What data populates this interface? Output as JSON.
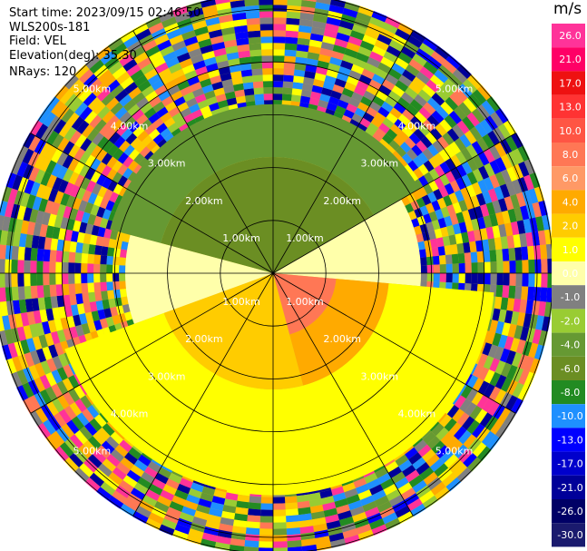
{
  "header": {
    "start_time": "Start time: 2023/09/15 02:46:50",
    "station": "WLS200s-181",
    "field": "Field: VEL",
    "elevation": "Elevation(deg): 35.30",
    "nrays": "NRays: 120"
  },
  "colorbar": {
    "unit": "m/s",
    "labels": [
      "26.0",
      "21.0",
      "17.0",
      "13.0",
      "10.0",
      "8.0",
      "6.0",
      "4.0",
      "2.0",
      "1.0",
      "0.0",
      "-1.0",
      "-2.0",
      "-4.0",
      "-6.0",
      "-8.0",
      "-10.0",
      "-13.0",
      "-17.0",
      "-21.0",
      "-26.0",
      "-30.0"
    ],
    "colors": [
      "#ff3399",
      "#ff0066",
      "#ee1111",
      "#ff3333",
      "#ff5544",
      "#ff7755",
      "#ff9966",
      "#ffaa00",
      "#ffcc00",
      "#ffff00",
      "#ffffaa",
      "#808080",
      "#99cc33",
      "#669933",
      "#6b8e23",
      "#228b22",
      "#1e90ff",
      "#0000ff",
      "#0000cc",
      "#000099",
      "#000066",
      "#1a1a6e"
    ]
  },
  "chart_data": {
    "type": "heatmap",
    "subtype": "ppi-polar-velocity",
    "range_unit": "km",
    "range_rings_km": [
      1,
      2,
      3,
      4,
      5
    ],
    "ring_labels": [
      "1.00km",
      "2.00km",
      "3.00km",
      "4.00km",
      "5.00km"
    ],
    "max_range_km": 5.3,
    "radial_lines_deg": [
      0,
      30,
      60,
      90,
      120,
      150,
      180,
      210,
      240,
      270,
      300,
      330
    ],
    "velocity_range": [
      -30,
      26
    ],
    "regions": [
      {
        "sector_deg": [
          285,
          60
        ],
        "range_km": [
          0,
          1.0
        ],
        "value": -5
      },
      {
        "sector_deg": [
          285,
          60
        ],
        "range_km": [
          1.0,
          2.2
        ],
        "value": -6
      },
      {
        "sector_deg": [
          285,
          60
        ],
        "range_km": [
          2.2,
          3.2
        ],
        "value": -4
      },
      {
        "sector_deg": [
          60,
          95
        ],
        "range_km": [
          0,
          2.8
        ],
        "value": 0
      },
      {
        "sector_deg": [
          95,
          165
        ],
        "range_km": [
          0,
          1.2
        ],
        "value": 8
      },
      {
        "sector_deg": [
          95,
          165
        ],
        "range_km": [
          1.2,
          2.2
        ],
        "value": 4
      },
      {
        "sector_deg": [
          95,
          250
        ],
        "range_km": [
          2.2,
          4.2
        ],
        "value": 1.5
      },
      {
        "sector_deg": [
          165,
          250
        ],
        "range_km": [
          0,
          2.2
        ],
        "value": 3
      },
      {
        "sector_deg": [
          250,
          285
        ],
        "range_km": [
          0,
          2.8
        ],
        "value": 0
      }
    ]
  }
}
